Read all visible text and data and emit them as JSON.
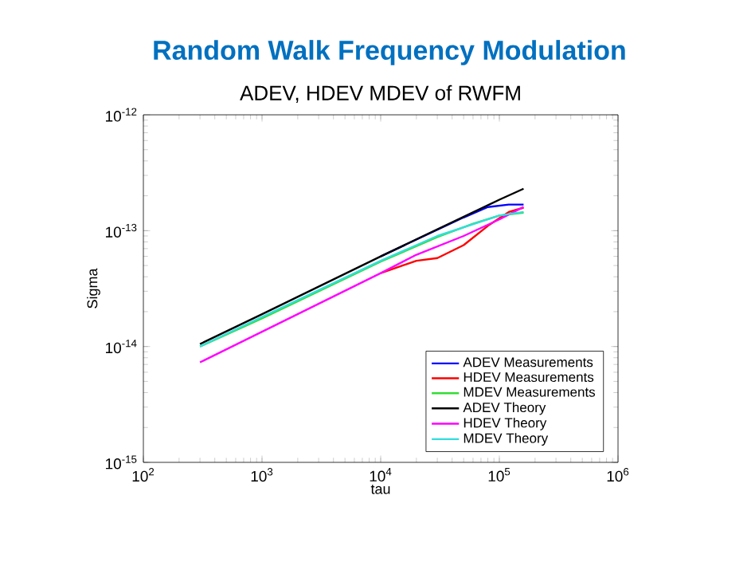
{
  "chart_data": {
    "type": "line",
    "title": "Random Walk Frequency Modulation",
    "subtitle": "ADEV, HDEV MDEV of RWFM",
    "xlabel": "tau",
    "ylabel": "Sigma",
    "log": "xy",
    "legend": "bottom right",
    "xlim": [
      100,
      1000000
    ],
    "ylim": [
      1e-15,
      1e-12
    ],
    "xticks": [
      {
        "value": 100,
        "label": "10$^{2}$"
      },
      {
        "value": 1000,
        "label": "10$^{3}$"
      },
      {
        "value": 10000,
        "label": "10$^{4}$"
      },
      {
        "value": 100000,
        "label": "10$^{5}$"
      },
      {
        "value": 1000000,
        "label": "10$^{6}$"
      }
    ],
    "yticks": [
      {
        "value": 1e-15,
        "label": "10$^{-15}$"
      },
      {
        "value": 1e-14,
        "label": "10$^{-14}$"
      },
      {
        "value": 1e-13,
        "label": "10$^{-13}$"
      },
      {
        "value": 1e-12,
        "label": "10$^{-12}$"
      }
    ],
    "series": [
      {
        "name": "ADEV Measurements",
        "color": "#0000ff",
        "x": [
          10000,
          50000,
          80000,
          120000,
          160000
        ],
        "values": [
          6e-14,
          1.3e-13,
          1.6e-13,
          1.68e-13,
          1.68e-13
        ]
      },
      {
        "name": "HDEV Measurements",
        "color": "#ff0000",
        "x": [
          10000,
          20000,
          30000,
          50000,
          80000,
          120000,
          160000
        ],
        "values": [
          4.3e-14,
          5.5e-14,
          5.8e-14,
          7.5e-14,
          1.1e-13,
          1.45e-13,
          1.58e-13
        ]
      },
      {
        "name": "MDEV Measurements",
        "color": "#33dd33",
        "x": [
          300,
          1000,
          10000,
          30000,
          60000,
          100000,
          160000
        ],
        "values": [
          1e-14,
          1.75e-14,
          5.4e-14,
          8.8e-14,
          1.15e-13,
          1.35e-13,
          1.43e-13
        ]
      },
      {
        "name": "ADEV Theory",
        "color": "#000000",
        "x": [
          300,
          1000,
          10000,
          100000,
          160000
        ],
        "values": [
          1.05e-14,
          1.9e-14,
          6e-14,
          1.85e-13,
          2.3e-13
        ]
      },
      {
        "name": "HDEV Theory",
        "color": "#ff00ff",
        "x": [
          300,
          10000,
          20000,
          50000,
          100000,
          160000
        ],
        "values": [
          7.3e-15,
          4.3e-14,
          6.2e-14,
          9e-14,
          1.25e-13,
          1.6e-13
        ]
      },
      {
        "name": "MDEV Theory",
        "color": "#33dddd",
        "x": [
          300,
          1000,
          10000,
          30000,
          100000,
          160000
        ],
        "values": [
          1e-14,
          1.8e-14,
          5.5e-14,
          9e-14,
          1.35e-13,
          1.45e-13
        ]
      }
    ]
  }
}
